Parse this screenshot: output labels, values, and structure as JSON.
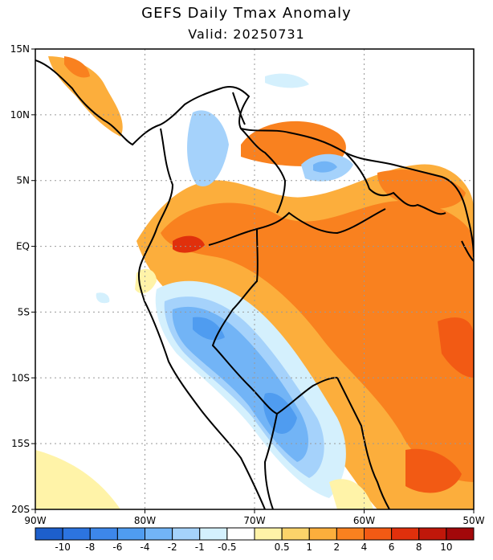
{
  "title": "GEFS Daily Tmax Anomaly",
  "subtitle": "Valid: 20250731",
  "map": {
    "lat_labels": [
      "15N",
      "10N",
      "5N",
      "EQ",
      "5S",
      "10S",
      "15S",
      "20S"
    ],
    "lon_labels": [
      "90W",
      "80W",
      "70W",
      "60W",
      "50W"
    ],
    "lat_range": [
      -20,
      15
    ],
    "lon_range": [
      -90,
      -50
    ],
    "grid": "dotted"
  },
  "colorbar": {
    "colors": [
      "#1d5fcc",
      "#2c74e0",
      "#3d87ea",
      "#4f9cf0",
      "#72b4f6",
      "#a5d2fb",
      "#d4f0fd",
      "#ffffff",
      "#fff3a8",
      "#fcd36a",
      "#fcae3c",
      "#f9811f",
      "#f25a14",
      "#e0300c",
      "#c0170a",
      "#a2080a"
    ],
    "tick_labels": [
      "-10",
      "-8",
      "-6",
      "-4",
      "-2",
      "-1",
      "-0.5",
      "0.5",
      "1",
      "2",
      "4",
      "6",
      "8",
      "10"
    ]
  }
}
